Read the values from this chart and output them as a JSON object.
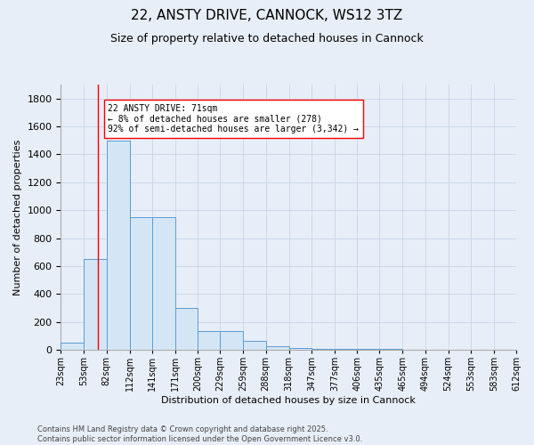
{
  "title": "22, ANSTY DRIVE, CANNOCK, WS12 3TZ",
  "subtitle": "Size of property relative to detached houses in Cannock",
  "xlabel": "Distribution of detached houses by size in Cannock",
  "ylabel": "Number of detached properties",
  "bin_edges": [
    23,
    53,
    82,
    112,
    141,
    171,
    200,
    229,
    259,
    288,
    318,
    347,
    377,
    406,
    435,
    465,
    494,
    524,
    553,
    583,
    612
  ],
  "bar_heights": [
    50,
    650,
    1500,
    950,
    950,
    300,
    135,
    135,
    65,
    25,
    15,
    5,
    5,
    5,
    5,
    0,
    0,
    0,
    0,
    0
  ],
  "bar_color": "#d4e6f5",
  "bar_edge_color": "#5b9bd5",
  "red_line_x": 71,
  "ylim": [
    0,
    1900
  ],
  "yticks": [
    0,
    200,
    400,
    600,
    800,
    1000,
    1200,
    1400,
    1600,
    1800
  ],
  "annotation_text": "22 ANSTY DRIVE: 71sqm\n← 8% of detached houses are smaller (278)\n92% of semi-detached houses are larger (3,342) →",
  "footnote_line1": "Contains HM Land Registry data © Crown copyright and database right 2025.",
  "footnote_line2": "Contains public sector information licensed under the Open Government Licence v3.0.",
  "background_color": "#e8eef7",
  "grid_color": "#c8d4e8",
  "title_fontsize": 11,
  "subtitle_fontsize": 9,
  "ylabel_fontsize": 8,
  "xlabel_fontsize": 8,
  "tick_label_fontsize": 7,
  "ytick_fontsize": 8,
  "annotation_fontsize": 7,
  "footnote_fontsize": 6
}
